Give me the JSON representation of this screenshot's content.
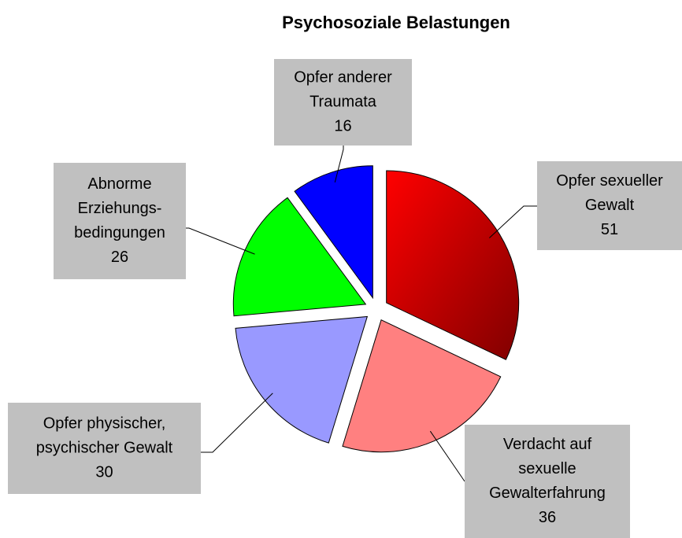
{
  "chart_data": {
    "type": "pie",
    "title": "Psychosoziale Belastungen",
    "categories": [
      [
        "Opfer sexueller",
        "Gewalt"
      ],
      [
        "Verdacht auf",
        "sexuelle",
        "Gewalterfahrung"
      ],
      [
        "Opfer physischer,",
        "psychischer Gewalt"
      ],
      [
        "Abnorme",
        "Erziehungs-",
        "bedingungen"
      ],
      [
        "Opfer anderer",
        "Traumata"
      ]
    ],
    "values": [
      51,
      36,
      30,
      26,
      16
    ],
    "colors": [
      "#ff0000",
      "#ff8080",
      "#9999ff",
      "#00ff00",
      "#0000ff"
    ]
  }
}
